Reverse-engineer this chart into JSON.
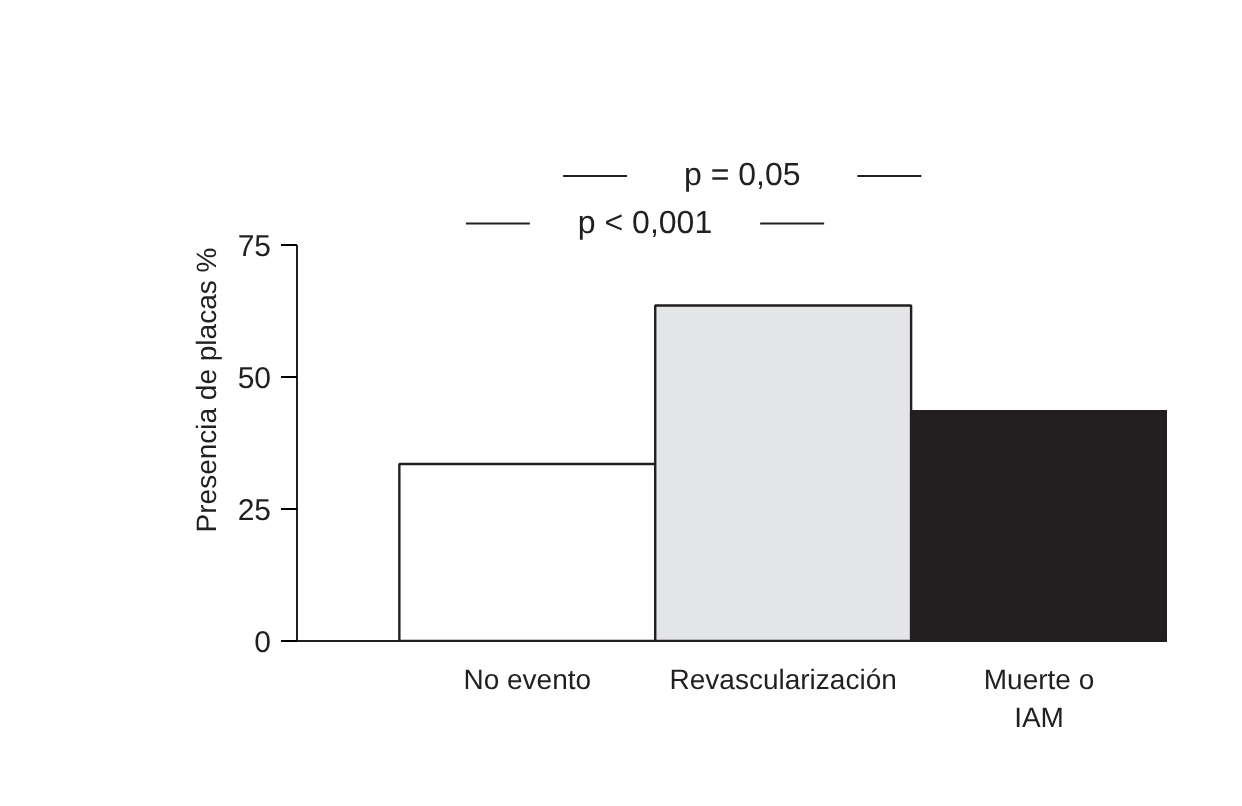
{
  "chart_data": {
    "type": "bar",
    "ylabel": "Presencia de placas %",
    "categories": [
      "No evento",
      "Revascularización",
      "Muerte o\nIAM"
    ],
    "values": [
      33.5,
      63.5,
      43.5
    ],
    "colors": [
      "#ffffff",
      "#e4e5e7",
      "#231f20"
    ],
    "ylim": [
      0,
      75
    ],
    "yticks": [
      0,
      25,
      50,
      75
    ],
    "grid": false,
    "annotations": [
      "p = 0,05",
      "p < 0,001"
    ]
  }
}
